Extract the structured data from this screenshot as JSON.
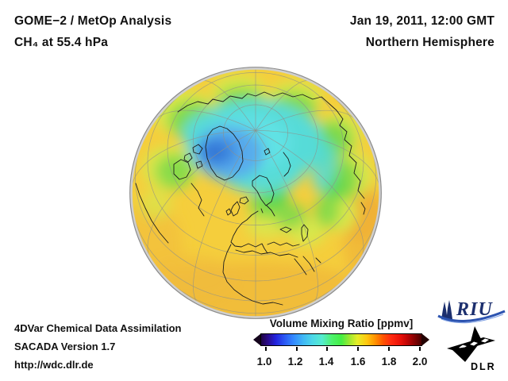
{
  "header": {
    "title_line1": "GOME−2 / MetOp Analysis",
    "title_line2": "CH₄ at 55.4 hPa",
    "date": "Jan 19, 2011, 12:00 GMT",
    "region": "Northern Hemisphere"
  },
  "credits": {
    "line1": "4DVar Chemical Data Assimilation",
    "line2": "SACADA Version 1.7",
    "line3": "http://wdc.dlr.de"
  },
  "colorbar": {
    "title": "Volume Mixing Ratio [ppmv]",
    "tick_labels": [
      "1.0",
      "1.2",
      "1.4",
      "1.6",
      "1.8",
      "2.0"
    ],
    "arrow_left_color": "#14041c",
    "arrow_right_color": "#230202",
    "gradient_stops": [
      "#1e0442 0%",
      "#2a0a86 4%",
      "#2222dd 9%",
      "#2a52f2 14%",
      "#3388ff 20%",
      "#3fb6f6 26%",
      "#4cd8e8 32%",
      "#55eccf 38%",
      "#4df26e 44%",
      "#44ee44 50%",
      "#9ce832 55%",
      "#e6ee28 60%",
      "#ffc70f 66%",
      "#ff9300 71%",
      "#ff5500 76%",
      "#ff2a10 81%",
      "#e81008 87%",
      "#c00505 91%",
      "#8e0202 95%",
      "#4a0000 100%"
    ]
  },
  "logos": {
    "riu": "RIU",
    "dlr": "DLR"
  },
  "globe_palette": {
    "low_ppmv_deep_blue": "#2f6fd2",
    "blue": "#3e88e0",
    "light_blue": "#58acec",
    "cyan": "#57dbd8",
    "green": "#7fd94a",
    "yellow_green": "#d9e74c",
    "yellow": "#f5ce3c",
    "amber_rim": "#f0ba38"
  },
  "chart_data": {
    "type": "heatmap",
    "title": "GOME−2 / MetOp Analysis — CH₄ at 55.4 hPa",
    "datetime": "Jan 19, 2011, 12:00 GMT",
    "region": "Northern Hemisphere",
    "projection": "orthographic globe centered near 60°N (North Pole visible, Europe at bottom center, Greenland left of pole)",
    "variable": "CH₄ volume mixing ratio",
    "units": "ppmv",
    "colorbar": {
      "label": "Volume Mixing Ratio [ppmv]",
      "range": [
        1.0,
        2.0
      ],
      "ticks": [
        1.0,
        1.2,
        1.4,
        1.6,
        1.8,
        2.0
      ],
      "colormap": "rainbow: dark violet-blue → blue → cyan → green → yellow → orange → red → dark red, with pointed over/underflow arrows"
    },
    "field_summary": [
      {
        "region": "polar vortex core over Greenland (deep blue)",
        "value_ppmv": 1.15
      },
      {
        "region": "Arctic cap / displaced vortex (cyan)",
        "value_ppmv": 1.3
      },
      {
        "region": "vortex edge ring, sweeping down over Siberia and Hudson Bay (green)",
        "value_ppmv": 1.45
      },
      {
        "region": "mid-latitudes (yellow)",
        "value_ppmv": 1.6
      },
      {
        "region": "subtropical limb patches (amber/orange)",
        "value_ppmv": 1.68
      }
    ],
    "grid": "gray graticule: meridians every 30°, parallels every 15°; black coastlines overlaid",
    "legend_position": "bottom center-right"
  }
}
